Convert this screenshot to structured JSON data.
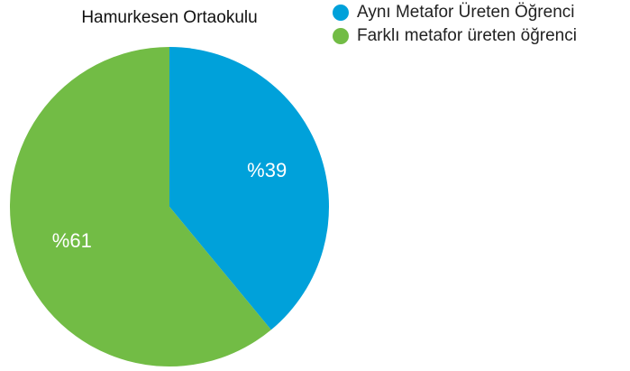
{
  "chart_data": {
    "type": "pie",
    "title": "Hamurkesen Ortaokulu",
    "categories": [
      "Aynı Metafor Üreten Öğrenci",
      "Farklı metafor üreten öğrenci"
    ],
    "values": [
      39,
      61
    ],
    "value_labels": [
      "%39",
      "%61"
    ],
    "colors": [
      "#00a1da",
      "#72bc45"
    ]
  }
}
